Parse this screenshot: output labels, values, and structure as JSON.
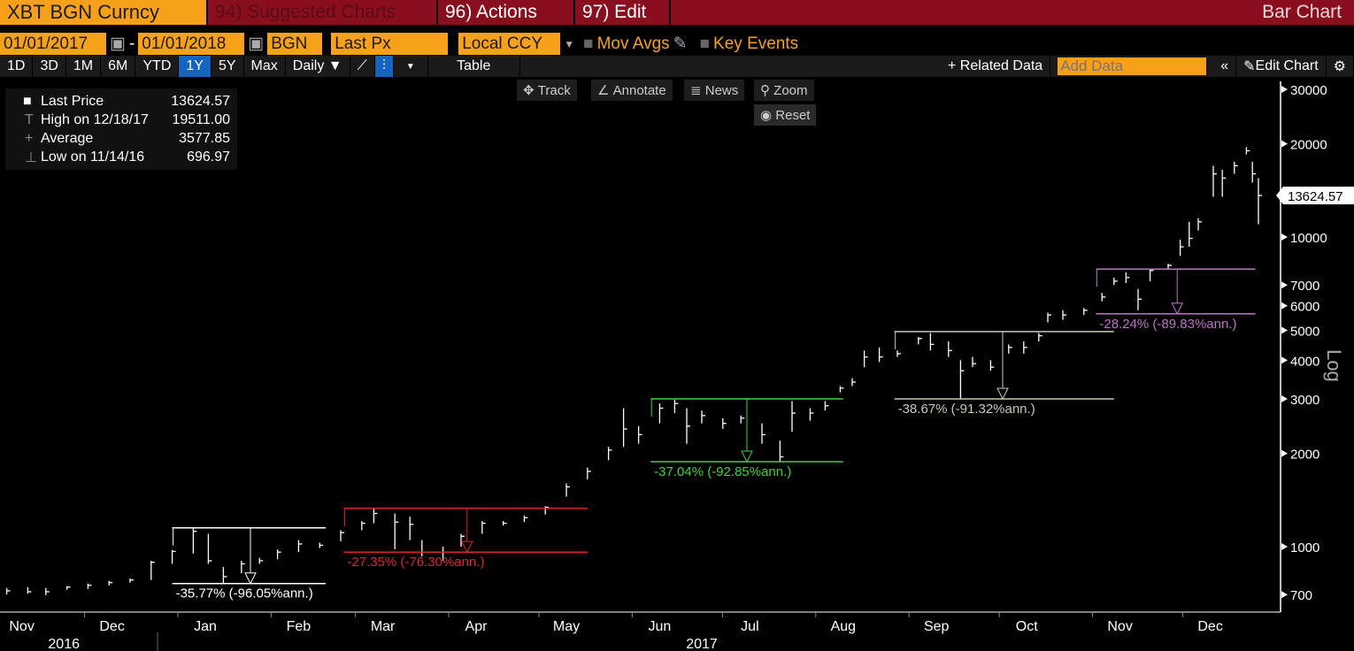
{
  "header": {
    "ticker": "XBT BGN Curncy",
    "suggested": "94) Suggested Charts",
    "actions": "96) Actions",
    "edit": "97) Edit",
    "title": "Bar Chart"
  },
  "controls": {
    "start_date": "01/01/2017",
    "end_date": "01/01/2018",
    "source": "BGN",
    "field": "Last Px",
    "currency": "Local CCY",
    "mov_avgs": "Mov Avgs",
    "key_events": "Key Events"
  },
  "toolbar": {
    "periods": [
      "1D",
      "3D",
      "1M",
      "6M",
      "YTD",
      "1Y",
      "5Y",
      "Max"
    ],
    "active_period": "1Y",
    "frequency": "Daily ▼",
    "table": "Table",
    "related": "+ Related Data",
    "add_data_placeholder": "Add Data",
    "edit_chart": "Edit Chart"
  },
  "chart_tools": {
    "track": "Track",
    "annotate": "Annotate",
    "news": "News",
    "zoom": "Zoom",
    "reset": "Reset"
  },
  "legend": [
    {
      "label": "Last Price",
      "value": "13624.57"
    },
    {
      "label": "High on 12/18/17",
      "value": "19511.00"
    },
    {
      "label": "Average",
      "value": "3577.85"
    },
    {
      "label": "Low on 11/14/16",
      "value": "696.97"
    }
  ],
  "chart_data": {
    "type": "bar",
    "title": "",
    "ylabel": "Log",
    "yscale": "log",
    "ylim": [
      600,
      32000
    ],
    "yticks": [
      700,
      1000,
      2000,
      3000,
      4000,
      5000,
      6000,
      7000,
      10000,
      20000,
      30000
    ],
    "xticks": [
      {
        "label": "Nov",
        "date": "2016-11-01"
      },
      {
        "label": "Dec",
        "date": "2016-12-01"
      },
      {
        "label": "Jan",
        "date": "2017-01-01"
      },
      {
        "label": "Feb",
        "date": "2017-02-01"
      },
      {
        "label": "Mar",
        "date": "2017-03-01"
      },
      {
        "label": "Apr",
        "date": "2017-04-01"
      },
      {
        "label": "May",
        "date": "2017-05-01"
      },
      {
        "label": "Jun",
        "date": "2017-06-01"
      },
      {
        "label": "Jul",
        "date": "2017-07-01"
      },
      {
        "label": "Aug",
        "date": "2017-08-01"
      },
      {
        "label": "Sep",
        "date": "2017-09-01"
      },
      {
        "label": "Oct",
        "date": "2017-10-01"
      },
      {
        "label": "Nov",
        "date": "2017-11-01"
      },
      {
        "label": "Dec",
        "date": "2017-12-01"
      }
    ],
    "years": [
      {
        "label": "2016",
        "date": "2016-11-20"
      },
      {
        "label": "2017",
        "date": "2017-06-20"
      }
    ],
    "last_price": "13624.57",
    "last_value": 13624.57,
    "series_hlc": [
      [
        "2016-11-01",
        735,
        700,
        720
      ],
      [
        "2016-11-08",
        740,
        705,
        715
      ],
      [
        "2016-11-14",
        735,
        697,
        715
      ],
      [
        "2016-11-21",
        745,
        725,
        740
      ],
      [
        "2016-11-28",
        760,
        730,
        750
      ],
      [
        "2016-12-05",
        775,
        750,
        765
      ],
      [
        "2016-12-12",
        790,
        765,
        780
      ],
      [
        "2016-12-19",
        900,
        780,
        890
      ],
      [
        "2016-12-26",
        975,
        880,
        965
      ],
      [
        "2017-01-02",
        1150,
        950,
        1120
      ],
      [
        "2017-01-07",
        1100,
        880,
        900
      ],
      [
        "2017-01-12",
        860,
        760,
        800
      ],
      [
        "2017-01-18",
        900,
        820,
        880
      ],
      [
        "2017-01-24",
        920,
        880,
        900
      ],
      [
        "2017-01-30",
        980,
        910,
        960
      ],
      [
        "2017-02-06",
        1050,
        960,
        1020
      ],
      [
        "2017-02-13",
        1030,
        990,
        1010
      ],
      [
        "2017-02-20",
        1130,
        1040,
        1110
      ],
      [
        "2017-02-27",
        1210,
        1130,
        1190
      ],
      [
        "2017-03-03",
        1330,
        1190,
        1280
      ],
      [
        "2017-03-10",
        1280,
        980,
        1200
      ],
      [
        "2017-03-15",
        1250,
        1050,
        1180
      ],
      [
        "2017-03-19",
        1050,
        930,
        960
      ],
      [
        "2017-03-26",
        1000,
        900,
        960
      ],
      [
        "2017-04-01",
        1100,
        1000,
        1080
      ],
      [
        "2017-04-08",
        1210,
        1100,
        1190
      ],
      [
        "2017-04-15",
        1210,
        1170,
        1190
      ],
      [
        "2017-04-22",
        1260,
        1200,
        1240
      ],
      [
        "2017-04-29",
        1350,
        1270,
        1340
      ],
      [
        "2017-05-06",
        1600,
        1450,
        1560
      ],
      [
        "2017-05-13",
        1800,
        1650,
        1750
      ],
      [
        "2017-05-20",
        2100,
        1900,
        2050
      ],
      [
        "2017-05-25",
        2800,
        2100,
        2400
      ],
      [
        "2017-05-30",
        2450,
        2150,
        2300
      ],
      [
        "2017-06-06",
        2900,
        2500,
        2800
      ],
      [
        "2017-06-11",
        2980,
        2700,
        2900
      ],
      [
        "2017-06-15",
        2800,
        2150,
        2450
      ],
      [
        "2017-06-20",
        2750,
        2500,
        2650
      ],
      [
        "2017-06-27",
        2600,
        2400,
        2500
      ],
      [
        "2017-07-03",
        2650,
        2500,
        2600
      ],
      [
        "2017-07-10",
        2500,
        2150,
        2300
      ],
      [
        "2017-07-16",
        2200,
        1880,
        1950
      ],
      [
        "2017-07-20",
        2950,
        2350,
        2700
      ],
      [
        "2017-07-26",
        2800,
        2550,
        2700
      ],
      [
        "2017-07-31",
        2950,
        2750,
        2850
      ],
      [
        "2017-08-05",
        3300,
        3150,
        3250
      ],
      [
        "2017-08-09",
        3500,
        3300,
        3400
      ],
      [
        "2017-08-13",
        4300,
        3800,
        4100
      ],
      [
        "2017-08-18",
        4400,
        3950,
        4100
      ],
      [
        "2017-08-24",
        4300,
        4100,
        4200
      ],
      [
        "2017-08-31",
        4750,
        4500,
        4700
      ],
      [
        "2017-09-04",
        4900,
        4300,
        4500
      ],
      [
        "2017-09-10",
        4600,
        4100,
        4300
      ],
      [
        "2017-09-14",
        4000,
        3000,
        3700
      ],
      [
        "2017-09-18",
        4100,
        3800,
        3900
      ],
      [
        "2017-09-24",
        4000,
        3700,
        3800
      ],
      [
        "2017-09-30",
        4500,
        4200,
        4400
      ],
      [
        "2017-10-05",
        4600,
        4200,
        4400
      ],
      [
        "2017-10-10",
        4900,
        4600,
        4800
      ],
      [
        "2017-10-13",
        5700,
        5300,
        5600
      ],
      [
        "2017-10-18",
        5800,
        5400,
        5600
      ],
      [
        "2017-10-25",
        5900,
        5600,
        5800
      ],
      [
        "2017-10-31",
        6600,
        6200,
        6400
      ],
      [
        "2017-11-04",
        7400,
        7000,
        7200
      ],
      [
        "2017-11-08",
        7700,
        7100,
        7400
      ],
      [
        "2017-11-12",
        6800,
        5800,
        6300
      ],
      [
        "2017-11-16",
        7900,
        7200,
        7800
      ],
      [
        "2017-11-22",
        8200,
        7900,
        8100
      ],
      [
        "2017-11-26",
        9800,
        8700,
        9300
      ],
      [
        "2017-11-29",
        11200,
        9300,
        9900
      ],
      [
        "2017-12-02",
        11500,
        10500,
        11200
      ],
      [
        "2017-12-07",
        17000,
        13500,
        16000
      ],
      [
        "2017-12-10",
        16500,
        13500,
        15500
      ],
      [
        "2017-12-14",
        17500,
        16000,
        17000
      ],
      [
        "2017-12-18",
        19511,
        18500,
        19000
      ],
      [
        "2017-12-20",
        17500,
        15000,
        16000
      ],
      [
        "2017-12-22",
        15500,
        11000,
        13625
      ]
    ],
    "drawdowns": [
      {
        "start": "2016-12-26",
        "end": "2017-02-15",
        "trough": "2017-01-21",
        "high": 1150,
        "low": 760,
        "label": "-35.77% (-96.05%ann.)",
        "color": "#ffffff"
      },
      {
        "start": "2017-02-21",
        "end": "2017-05-13",
        "trough": "2017-04-03",
        "high": 1330,
        "low": 960,
        "label": "-27.35% (-76.30%ann.)",
        "color": "#e0242c"
      },
      {
        "start": "2017-06-03",
        "end": "2017-08-06",
        "trough": "2017-07-05",
        "high": 3000,
        "low": 1880,
        "label": "-37.04% (-92.85%ann.)",
        "color": "#3fd33f"
      },
      {
        "start": "2017-08-23",
        "end": "2017-11-04",
        "trough": "2017-09-28",
        "high": 4950,
        "low": 3000,
        "label": "-38.67% (-91.32%ann.)",
        "color": "#c8c8b4"
      },
      {
        "start": "2017-10-29",
        "end": "2017-12-21",
        "trough": "2017-11-25",
        "high": 7880,
        "low": 5650,
        "label": "-28.24% (-89.83%ann.)",
        "color": "#c070c8"
      }
    ]
  },
  "colors": {
    "header": "#8a0f1e",
    "accent": "#f7a11a",
    "active": "#1565c0"
  }
}
